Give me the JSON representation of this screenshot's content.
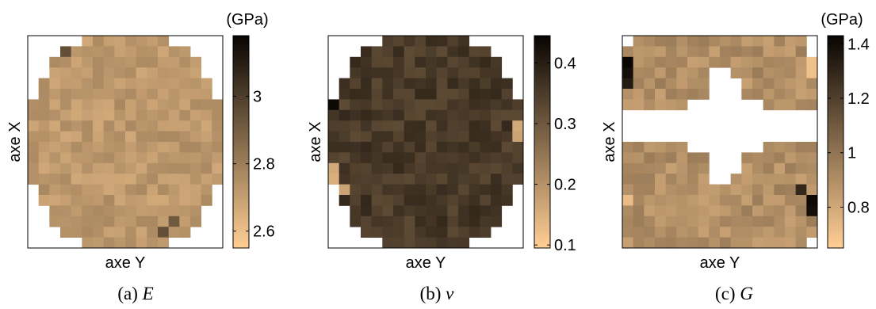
{
  "chart_data": [
    {
      "type": "heatmap",
      "caption": {
        "prefix": "(a) ",
        "symbol": "E"
      },
      "xlabel": "axe Y",
      "ylabel": "axe X",
      "colorbar": {
        "unit": "(GPa)",
        "ticks": [
          "2.6",
          "2.8",
          "3"
        ],
        "tick_values": [
          2.6,
          2.8,
          3.0
        ],
        "range": [
          2.55,
          3.18
        ]
      },
      "grid": {
        "rows": 20,
        "cols": 18
      },
      "mask": "circle",
      "base": 2.72,
      "noise": 0.05,
      "hotspots": [
        [
          0,
          3,
          3.18
        ],
        [
          0,
          4,
          3.0
        ],
        [
          1,
          3,
          2.95
        ],
        [
          18,
          12,
          2.95
        ],
        [
          17,
          13,
          2.92
        ]
      ]
    },
    {
      "type": "heatmap",
      "caption": {
        "prefix": "(b) ",
        "symbol": "ν"
      },
      "xlabel": "axe Y",
      "ylabel": "axe X",
      "colorbar": {
        "unit": "",
        "ticks": [
          "0.1",
          "0.2",
          "0.3",
          "0.4"
        ],
        "tick_values": [
          0.1,
          0.2,
          0.3,
          0.4
        ],
        "range": [
          0.095,
          0.445
        ]
      },
      "grid": {
        "rows": 20,
        "cols": 18
      },
      "mask": "circle",
      "base": 0.355,
      "noise": 0.03,
      "hotspots": [
        [
          6,
          0,
          0.44
        ],
        [
          12,
          0,
          0.16
        ],
        [
          13,
          0,
          0.15
        ],
        [
          14,
          1,
          0.17
        ],
        [
          8,
          17,
          0.16
        ],
        [
          9,
          17,
          0.17
        ],
        [
          15,
          17,
          0.43
        ],
        [
          18,
          15,
          0.43
        ]
      ]
    },
    {
      "type": "heatmap",
      "caption": {
        "prefix": "(c) ",
        "symbol": "G"
      },
      "xlabel": "axe Y",
      "ylabel": "axe X",
      "colorbar": {
        "unit": "(GPa)",
        "ticks": [
          "0.8",
          "1",
          "1.2",
          "1.4"
        ],
        "tick_values": [
          0.8,
          1.0,
          1.2,
          1.4
        ],
        "range": [
          0.65,
          1.43
        ]
      },
      "grid": {
        "rows": 20,
        "cols": 18
      },
      "mask": "cross",
      "base": 0.9,
      "noise": 0.07,
      "hotspots": [
        [
          2,
          0,
          1.43
        ],
        [
          3,
          0,
          1.4
        ],
        [
          4,
          0,
          1.35
        ],
        [
          15,
          17,
          1.42
        ],
        [
          16,
          17,
          1.4
        ],
        [
          14,
          16,
          1.3
        ],
        [
          2,
          17,
          0.7
        ],
        [
          3,
          17,
          0.7
        ],
        [
          15,
          0,
          0.72
        ]
      ]
    }
  ]
}
